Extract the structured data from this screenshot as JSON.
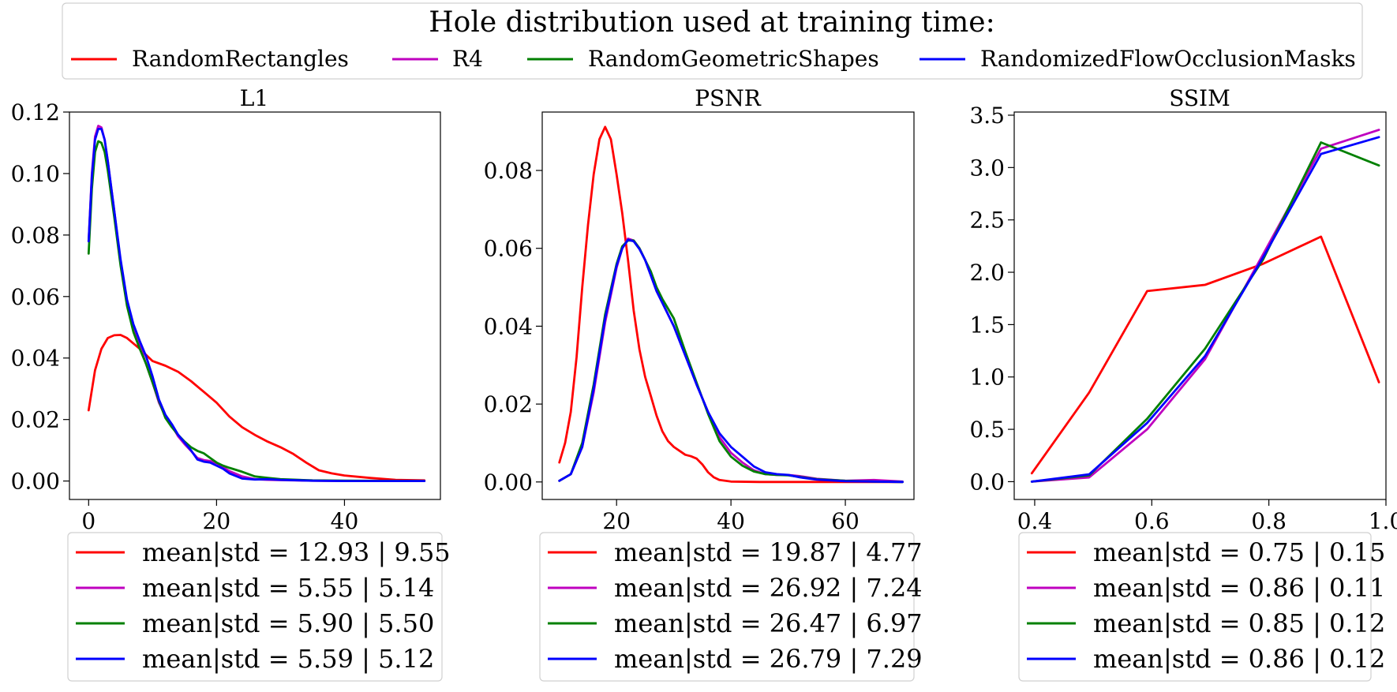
{
  "figure": {
    "legend_title": "Hole distribution used at training time:",
    "series_names": [
      "RandomRectangles",
      "R4",
      "RandomGeometricShapes",
      "RandomizedFlowOcclusionMasks"
    ],
    "colors": [
      "#ff0000",
      "#bf00bf",
      "#008000",
      "#0000ff"
    ]
  },
  "chart_data": [
    {
      "type": "line",
      "title": "L1",
      "xlabel": "",
      "ylabel": "",
      "xlim": [
        -3,
        55
      ],
      "ylim": [
        -0.006,
        0.12
      ],
      "xticks": [
        0,
        20,
        40
      ],
      "xtick_labels": [
        "0",
        "20",
        "40"
      ],
      "yticks": [
        0.0,
        0.02,
        0.04,
        0.06,
        0.08,
        0.1,
        0.12
      ],
      "ytick_labels": [
        "0.00",
        "0.02",
        "0.04",
        "0.06",
        "0.08",
        "0.10",
        "0.12"
      ],
      "legend": [
        "mean|std = 12.93 | 9.55",
        "mean|std = 5.55 | 5.14",
        "mean|std = 5.90 | 5.50",
        "mean|std = 5.59 | 5.12"
      ],
      "series": [
        {
          "name": "RandomRectangles",
          "x": [
            0,
            1,
            2,
            3,
            4,
            5,
            6,
            8,
            10,
            12,
            14,
            16,
            18,
            20,
            22,
            24,
            26,
            28,
            30,
            32,
            34,
            36,
            38,
            40,
            44,
            48,
            52.5
          ],
          "y": [
            0.023,
            0.036,
            0.043,
            0.0465,
            0.0474,
            0.0475,
            0.0465,
            0.043,
            0.039,
            0.0375,
            0.0355,
            0.0325,
            0.029,
            0.0255,
            0.021,
            0.0175,
            0.015,
            0.0128,
            0.011,
            0.0088,
            0.006,
            0.0035,
            0.0025,
            0.0018,
            0.001,
            0.0004,
            0.0002
          ]
        },
        {
          "name": "R4",
          "x": [
            0,
            0.5,
            1,
            1.5,
            2,
            2.5,
            3,
            4,
            5,
            6,
            7,
            8,
            9,
            10,
            11,
            12,
            13,
            14,
            15,
            16,
            17,
            18,
            19,
            20,
            21,
            22,
            24,
            26,
            28,
            30,
            35,
            40,
            52.5
          ],
          "y": [
            0.078,
            0.1,
            0.112,
            0.1155,
            0.115,
            0.111,
            0.104,
            0.088,
            0.071,
            0.058,
            0.0495,
            0.044,
            0.038,
            0.032,
            0.0255,
            0.021,
            0.018,
            0.0145,
            0.012,
            0.0098,
            0.0075,
            0.0068,
            0.0065,
            0.0058,
            0.0045,
            0.0032,
            0.0015,
            0.0006,
            0.0004,
            0.0003,
            0.0001,
            0.0,
            0.0
          ]
        },
        {
          "name": "RandomGeometricShapes",
          "x": [
            0,
            0.5,
            1,
            1.5,
            2,
            2.5,
            3,
            4,
            5,
            6,
            7,
            8,
            9,
            10,
            11,
            12,
            13,
            14,
            15,
            16,
            17,
            18,
            19,
            20,
            21,
            22,
            24,
            26,
            28,
            30,
            35,
            40,
            52.5
          ],
          "y": [
            0.074,
            0.095,
            0.107,
            0.1105,
            0.11,
            0.107,
            0.101,
            0.086,
            0.07,
            0.057,
            0.0485,
            0.043,
            0.038,
            0.032,
            0.026,
            0.0205,
            0.0175,
            0.015,
            0.0128,
            0.011,
            0.0098,
            0.009,
            0.0075,
            0.006,
            0.005,
            0.0043,
            0.003,
            0.0015,
            0.001,
            0.0006,
            0.0002,
            0.0001,
            0.0
          ]
        },
        {
          "name": "RandomizedFlowOcclusionMasks",
          "x": [
            0,
            0.5,
            1,
            1.5,
            2,
            2.5,
            3,
            4,
            5,
            6,
            7,
            8,
            9,
            10,
            11,
            12,
            13,
            14,
            15,
            16,
            17,
            18,
            19,
            20,
            21,
            22,
            24,
            26,
            28,
            30,
            35,
            40,
            52.5
          ],
          "y": [
            0.078,
            0.099,
            0.111,
            0.1145,
            0.1145,
            0.111,
            0.104,
            0.088,
            0.072,
            0.059,
            0.051,
            0.0455,
            0.0405,
            0.034,
            0.0265,
            0.0215,
            0.0185,
            0.015,
            0.0125,
            0.01,
            0.007,
            0.0063,
            0.006,
            0.005,
            0.004,
            0.0025,
            0.0008,
            0.0005,
            0.0006,
            0.0004,
            0.0001,
            0.0,
            0.0
          ]
        }
      ]
    },
    {
      "type": "line",
      "title": "PSNR",
      "xlabel": "",
      "ylabel": "",
      "xlim": [
        7,
        72
      ],
      "ylim": [
        -0.0045,
        0.095
      ],
      "xticks": [
        20,
        40,
        60
      ],
      "xtick_labels": [
        "20",
        "40",
        "60"
      ],
      "yticks": [
        0.0,
        0.02,
        0.04,
        0.06,
        0.08
      ],
      "ytick_labels": [
        "0.00",
        "0.02",
        "0.04",
        "0.06",
        "0.08"
      ],
      "legend": [
        "mean|std = 19.87 | 4.77",
        "mean|std = 26.92 | 7.24",
        "mean|std = 26.47 | 6.97",
        "mean|std = 26.79 | 7.29"
      ],
      "series": [
        {
          "name": "RandomRectangles",
          "x": [
            10,
            11,
            12,
            13,
            14,
            15,
            16,
            17,
            18,
            19,
            20,
            21,
            22,
            23,
            24,
            25,
            26,
            27,
            28,
            29,
            30,
            31,
            32,
            33,
            34,
            35,
            36,
            37,
            38,
            40,
            45,
            55,
            70
          ],
          "y": [
            0.005,
            0.01,
            0.018,
            0.032,
            0.05,
            0.066,
            0.079,
            0.088,
            0.0912,
            0.088,
            0.079,
            0.069,
            0.057,
            0.044,
            0.034,
            0.027,
            0.022,
            0.017,
            0.013,
            0.0105,
            0.009,
            0.008,
            0.007,
            0.0066,
            0.006,
            0.0045,
            0.0025,
            0.0012,
            0.0005,
            0.0001,
            0.0,
            0.0,
            0.0
          ]
        },
        {
          "name": "R4",
          "x": [
            10,
            12,
            14,
            16,
            18,
            20,
            21,
            22,
            23,
            24,
            25,
            26,
            27,
            28,
            30,
            32,
            34,
            36,
            38,
            40,
            42,
            44,
            46,
            48,
            50,
            52,
            55,
            60,
            65,
            70
          ],
          "y": [
            0.0003,
            0.002,
            0.009,
            0.023,
            0.041,
            0.055,
            0.06,
            0.0625,
            0.062,
            0.06,
            0.057,
            0.053,
            0.049,
            0.046,
            0.04,
            0.0325,
            0.025,
            0.018,
            0.0115,
            0.0075,
            0.005,
            0.003,
            0.002,
            0.0018,
            0.0018,
            0.0015,
            0.0008,
            0.0003,
            0.0005,
            0.0001
          ]
        },
        {
          "name": "RandomGeometricShapes",
          "x": [
            10,
            12,
            14,
            16,
            18,
            20,
            21,
            22,
            23,
            24,
            25,
            26,
            27,
            28,
            30,
            32,
            34,
            36,
            38,
            40,
            42,
            44,
            46,
            48,
            50,
            52,
            55,
            60,
            65,
            70
          ],
          "y": [
            0.0003,
            0.002,
            0.01,
            0.025,
            0.043,
            0.056,
            0.0605,
            0.062,
            0.062,
            0.06,
            0.057,
            0.054,
            0.05,
            0.047,
            0.042,
            0.0335,
            0.0255,
            0.0175,
            0.0105,
            0.0065,
            0.0042,
            0.0027,
            0.002,
            0.0018,
            0.0017,
            0.0013,
            0.0007,
            0.0003,
            0.0001,
            0.0
          ]
        },
        {
          "name": "RandomizedFlowOcclusionMasks",
          "x": [
            10,
            12,
            14,
            16,
            18,
            20,
            21,
            22,
            23,
            24,
            25,
            26,
            27,
            28,
            30,
            32,
            34,
            36,
            38,
            40,
            42,
            44,
            46,
            48,
            50,
            52,
            55,
            60,
            65,
            70
          ],
          "y": [
            0.0003,
            0.002,
            0.009,
            0.024,
            0.042,
            0.0555,
            0.06,
            0.0622,
            0.0618,
            0.0598,
            0.057,
            0.053,
            0.049,
            0.046,
            0.04,
            0.0325,
            0.025,
            0.018,
            0.0125,
            0.009,
            0.0065,
            0.004,
            0.0025,
            0.002,
            0.0018,
            0.0012,
            0.0006,
            0.0002,
            0.0001,
            0.0
          ]
        }
      ]
    },
    {
      "type": "line",
      "title": "SSIM",
      "xlabel": "",
      "ylabel": "",
      "xlim": [
        0.365,
        1.0
      ],
      "ylim": [
        -0.17,
        3.53
      ],
      "xticks": [
        0.4,
        0.6,
        0.8,
        1.0
      ],
      "xtick_labels": [
        "0.4",
        "0.6",
        "0.8",
        "1.0"
      ],
      "yticks": [
        0.0,
        0.5,
        1.0,
        1.5,
        2.0,
        2.5,
        3.0,
        3.5
      ],
      "ytick_labels": [
        "0.0",
        "0.5",
        "1.0",
        "1.5",
        "2.0",
        "2.5",
        "3.0",
        "3.5"
      ],
      "legend": [
        "mean|std = 0.75 | 0.15",
        "mean|std = 0.86 | 0.11",
        "mean|std = 0.85 | 0.12",
        "mean|std = 0.86 | 0.12"
      ],
      "series": [
        {
          "name": "RandomRectangles",
          "x": [
            0.395,
            0.493,
            0.592,
            0.691,
            0.79,
            0.889,
            0.988
          ],
          "y": [
            0.08,
            0.85,
            1.82,
            1.88,
            2.08,
            2.34,
            0.95
          ]
        },
        {
          "name": "R4",
          "x": [
            0.395,
            0.493,
            0.592,
            0.691,
            0.79,
            0.889,
            0.988
          ],
          "y": [
            0.0,
            0.04,
            0.5,
            1.17,
            2.17,
            3.18,
            3.36
          ]
        },
        {
          "name": "RandomGeometricShapes",
          "x": [
            0.395,
            0.493,
            0.592,
            0.691,
            0.79,
            0.889,
            0.988
          ],
          "y": [
            0.0,
            0.06,
            0.6,
            1.27,
            2.12,
            3.24,
            3.02
          ]
        },
        {
          "name": "RandomizedFlowOcclusionMasks",
          "x": [
            0.395,
            0.493,
            0.592,
            0.691,
            0.79,
            0.889,
            0.988
          ],
          "y": [
            0.0,
            0.07,
            0.56,
            1.2,
            2.14,
            3.13,
            3.29
          ]
        }
      ]
    }
  ]
}
